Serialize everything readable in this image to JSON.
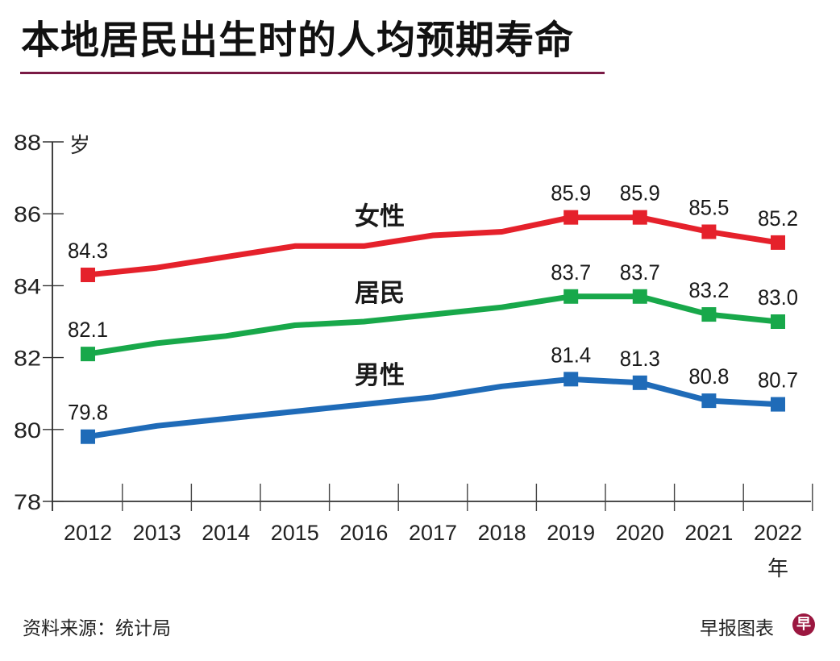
{
  "title": "本地居民出生时的人均预期寿命",
  "footer": {
    "source": "资料来源：统计局",
    "credit": "早报图表",
    "logo_glyph": "早"
  },
  "colors": {
    "title_rule": "#7a1a45",
    "logo": "#9b1740"
  },
  "chart_data": {
    "type": "line",
    "title": "本地居民出生时的人均预期寿命",
    "xlabel": "年",
    "ylabel": "岁",
    "x": [
      2012,
      2013,
      2014,
      2015,
      2016,
      2017,
      2018,
      2019,
      2020,
      2021,
      2022
    ],
    "x_tick_labels": [
      "2012",
      "2013",
      "2014",
      "2015",
      "2016",
      "2017",
      "2018",
      "2019",
      "2020",
      "2021",
      "2022"
    ],
    "ylim": [
      78,
      88
    ],
    "y_ticks": [
      78,
      80,
      82,
      84,
      86,
      88
    ],
    "y_tick_labels": [
      "78",
      "80",
      "82",
      "84",
      "86",
      "88"
    ],
    "grid": false,
    "legend": "inline-labels",
    "series": [
      {
        "name": "女性",
        "color": "#e5212b",
        "values": [
          84.3,
          84.5,
          84.8,
          85.1,
          85.1,
          85.4,
          85.5,
          85.9,
          85.9,
          85.5,
          85.2
        ],
        "marked_indices": [
          0,
          7,
          8,
          9,
          10
        ],
        "data_labels": {
          "0": "84.3",
          "7": "85.9",
          "8": "85.9",
          "9": "85.5",
          "10": "85.2"
        }
      },
      {
        "name": "居民",
        "color": "#18a84a",
        "values": [
          82.1,
          82.4,
          82.6,
          82.9,
          83.0,
          83.2,
          83.4,
          83.7,
          83.7,
          83.2,
          83.0
        ],
        "marked_indices": [
          0,
          7,
          8,
          9,
          10
        ],
        "data_labels": {
          "0": "82.1",
          "7": "83.7",
          "8": "83.7",
          "9": "83.2",
          "10": "83.0"
        }
      },
      {
        "name": "男性",
        "color": "#1f6bb8",
        "values": [
          79.8,
          80.1,
          80.3,
          80.5,
          80.7,
          80.9,
          81.2,
          81.4,
          81.3,
          80.8,
          80.7
        ],
        "marked_indices": [
          0,
          7,
          8,
          9,
          10
        ],
        "data_labels": {
          "0": "79.8",
          "7": "81.4",
          "8": "81.3",
          "9": "80.8",
          "10": "80.7"
        }
      }
    ]
  }
}
